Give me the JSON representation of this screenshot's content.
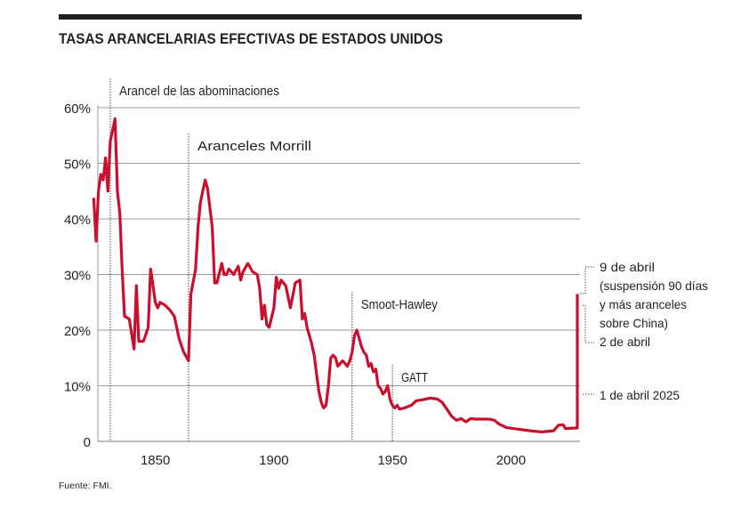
{
  "chart_data": {
    "type": "line",
    "title": "TASAS ARANCELARIAS EFECTIVAS DE ESTADOS UNIDOS",
    "source": "Fuente: FMI.",
    "xlabel": "",
    "ylabel": "",
    "xlim": [
      1821,
      2025
    ],
    "ylim": [
      0,
      60
    ],
    "grid": true,
    "line_color": "#c8102e",
    "y_ticks": [
      {
        "value": 0,
        "label": "0"
      },
      {
        "value": 10,
        "label": "10%"
      },
      {
        "value": 20,
        "label": "20%"
      },
      {
        "value": 30,
        "label": "30%"
      },
      {
        "value": 40,
        "label": "40%"
      },
      {
        "value": 50,
        "label": "50%"
      },
      {
        "value": 60,
        "label": "60%"
      }
    ],
    "x_ticks": [
      {
        "value": 1850,
        "label": "1850"
      },
      {
        "value": 1900,
        "label": "1900"
      },
      {
        "value": 1950,
        "label": "1950"
      },
      {
        "value": 2000,
        "label": "2000"
      }
    ],
    "series": [
      {
        "x": [
          1821,
          1822,
          1823,
          1824,
          1825,
          1826,
          1827,
          1828,
          1830,
          1831,
          1832,
          1833,
          1834,
          1836,
          1838,
          1839,
          1840,
          1842,
          1844,
          1845,
          1846,
          1847,
          1848,
          1849,
          1851,
          1853,
          1855,
          1857,
          1859,
          1861,
          1862,
          1864,
          1865,
          1866,
          1868,
          1869,
          1871,
          1872,
          1873,
          1875,
          1876,
          1877,
          1878,
          1880,
          1882,
          1883,
          1884,
          1886,
          1888,
          1890,
          1891,
          1892,
          1893,
          1894,
          1895,
          1897,
          1898,
          1899,
          1900,
          1902,
          1904,
          1906,
          1908,
          1909,
          1910,
          1911,
          1913,
          1914,
          1915,
          1916,
          1917,
          1918,
          1919,
          1920,
          1921,
          1922,
          1923,
          1924,
          1926,
          1928,
          1929,
          1930,
          1931,
          1932,
          1933,
          1934,
          1935,
          1936,
          1937,
          1938,
          1939,
          1940,
          1941,
          1942,
          1943,
          1944,
          1945,
          1946,
          1947,
          1948,
          1949,
          1950,
          1952,
          1955,
          1957,
          1960,
          1963,
          1966,
          1968,
          1970,
          1972,
          1974,
          1976,
          1978,
          1980,
          1982,
          1985,
          1988,
          1990,
          1992,
          1995,
          2000,
          2005,
          2010,
          2015,
          2017,
          2019,
          2020,
          2024,
          2025,
          2025.01
        ],
        "values": [
          43.8,
          36,
          45,
          48,
          47,
          51,
          45,
          54,
          58,
          45,
          41,
          31,
          22.5,
          22,
          16.6,
          28,
          18,
          18,
          20.5,
          31,
          28,
          25,
          24,
          25,
          24.5,
          23.7,
          22.5,
          18.5,
          16,
          14.5,
          26.5,
          31,
          38.5,
          43,
          47,
          45.5,
          38.5,
          28.5,
          28.5,
          32,
          30,
          30,
          31,
          30,
          31.5,
          29,
          30.5,
          32,
          30.5,
          30,
          27.5,
          22,
          24.5,
          21,
          20.5,
          24,
          29.5,
          27.5,
          29,
          28,
          24,
          28.5,
          29,
          22,
          23,
          20.5,
          17.5,
          15.5,
          12,
          9,
          7,
          6,
          6.5,
          10,
          15,
          15.5,
          15,
          13.5,
          14.5,
          13.5,
          14.5,
          16,
          19,
          20,
          18.5,
          17,
          16,
          15.5,
          13.5,
          14,
          12.5,
          13,
          10,
          9.5,
          8.5,
          9,
          10,
          7.5,
          6.5,
          6,
          6.5,
          5.8,
          6,
          6.5,
          7.3,
          7.5,
          7.8,
          7.6,
          7,
          5.8,
          4.5,
          3.8,
          4.1,
          3.5,
          4.1,
          4,
          4,
          4,
          3.8,
          3.1,
          2.5,
          2.2,
          1.9,
          1.7,
          1.9,
          2.9,
          3,
          2.3,
          2.4,
          2.4,
          26.5
        ]
      }
    ],
    "annotations": [
      {
        "year": 1828,
        "label": "Arancel de las abominaciones"
      },
      {
        "year": 1861,
        "label": "Aranceles Morrill"
      },
      {
        "year": 1930,
        "label": "Smoot-Hawley"
      },
      {
        "year": 1947,
        "label": "GATT"
      }
    ],
    "right_annotations": {
      "april9": [
        "9 de abril",
        "(suspensión 90 días",
        "y más aranceles",
        "sobre China)"
      ],
      "april2": "2 de abril",
      "april1": "1 de abril 2025"
    }
  }
}
